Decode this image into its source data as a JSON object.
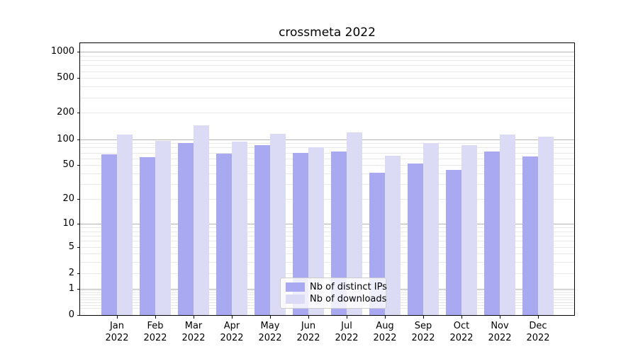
{
  "chart_data": {
    "type": "bar",
    "title": "crossmeta 2022",
    "categories": [
      "Jan 2022",
      "Feb 2022",
      "Mar 2022",
      "Apr 2022",
      "May 2022",
      "Jun 2022",
      "Jul 2022",
      "Aug 2022",
      "Sep 2022",
      "Oct 2022",
      "Nov 2022",
      "Dec 2022"
    ],
    "series": [
      {
        "name": "Nb of distinct IPs",
        "color": "#a9a9f2",
        "values": [
          67,
          62,
          90,
          68,
          86,
          69,
          72,
          41,
          52,
          44,
          72,
          63
        ]
      },
      {
        "name": "Nb of downloads",
        "color": "#dbdbf6",
        "values": [
          113,
          95,
          145,
          94,
          116,
          80,
          119,
          64,
          90,
          86,
          113,
          106
        ]
      }
    ],
    "xlabel": "",
    "ylabel": "",
    "yscale": "log1p",
    "ylim": [
      0,
      1250
    ],
    "yticks": [
      0,
      1,
      2,
      5,
      10,
      20,
      50,
      100,
      200,
      500,
      1000
    ],
    "major_gridlines": [
      1,
      10,
      100,
      1000
    ],
    "minor_gridlines": [
      0.2,
      0.3,
      0.4,
      0.5,
      0.6,
      0.7,
      0.8,
      0.9,
      2,
      3,
      4,
      5,
      6,
      7,
      8,
      9,
      20,
      30,
      40,
      50,
      60,
      70,
      80,
      90,
      200,
      300,
      400,
      500,
      600,
      700,
      800,
      900
    ],
    "grid": true,
    "legend_position": "lower center"
  },
  "colors": {
    "background": "#ffffff",
    "axis": "#000000",
    "text": "#000000",
    "major_grid": "#b3b3b3",
    "minor_grid": "#e8e8e8",
    "legend_border": "#cccccc",
    "legend_bg": "rgba(255,255,255,0.8)"
  }
}
